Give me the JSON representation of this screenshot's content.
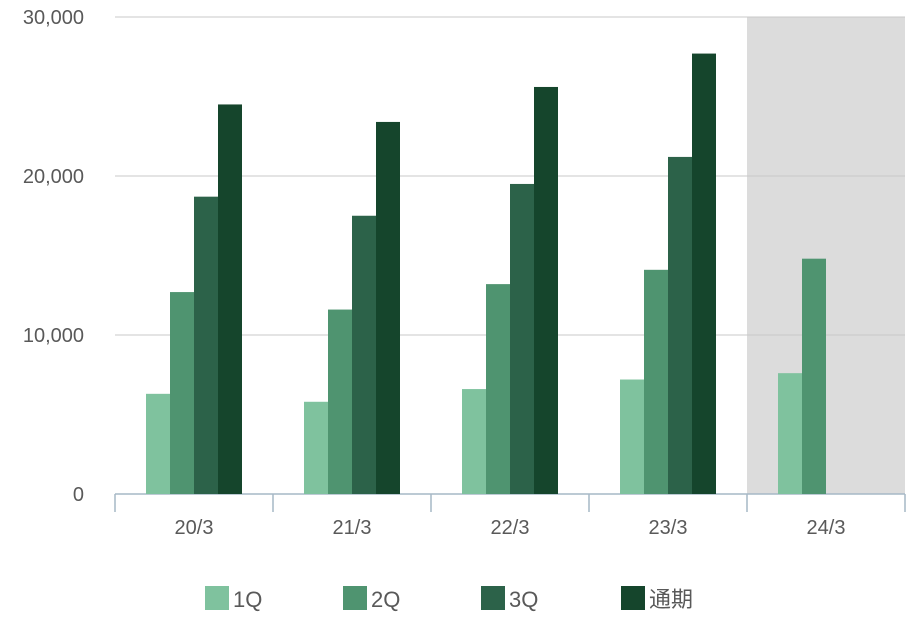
{
  "chart_data": {
    "type": "bar",
    "categories": [
      "20/3",
      "21/3",
      "22/3",
      "23/3",
      "24/3"
    ],
    "series": [
      {
        "name": "1Q",
        "color": "#7fc29e",
        "values": [
          6300,
          5800,
          6600,
          7200,
          7600
        ]
      },
      {
        "name": "2Q",
        "color": "#4f9470",
        "values": [
          12700,
          11600,
          13200,
          14100,
          14800
        ]
      },
      {
        "name": "3Q",
        "color": "#2c6249",
        "values": [
          18700,
          17500,
          19500,
          21200,
          null
        ]
      },
      {
        "name": "通期",
        "color": "#15452c",
        "values": [
          24500,
          23400,
          25600,
          27700,
          null
        ]
      }
    ],
    "y_ticks": [
      "0",
      "10,000",
      "20,000",
      "30,000"
    ],
    "ylim": [
      0,
      30000
    ],
    "grid": true,
    "legend_position": "bottom",
    "highlight_category": "24/3",
    "highlight_color": "#dcdcdc"
  }
}
